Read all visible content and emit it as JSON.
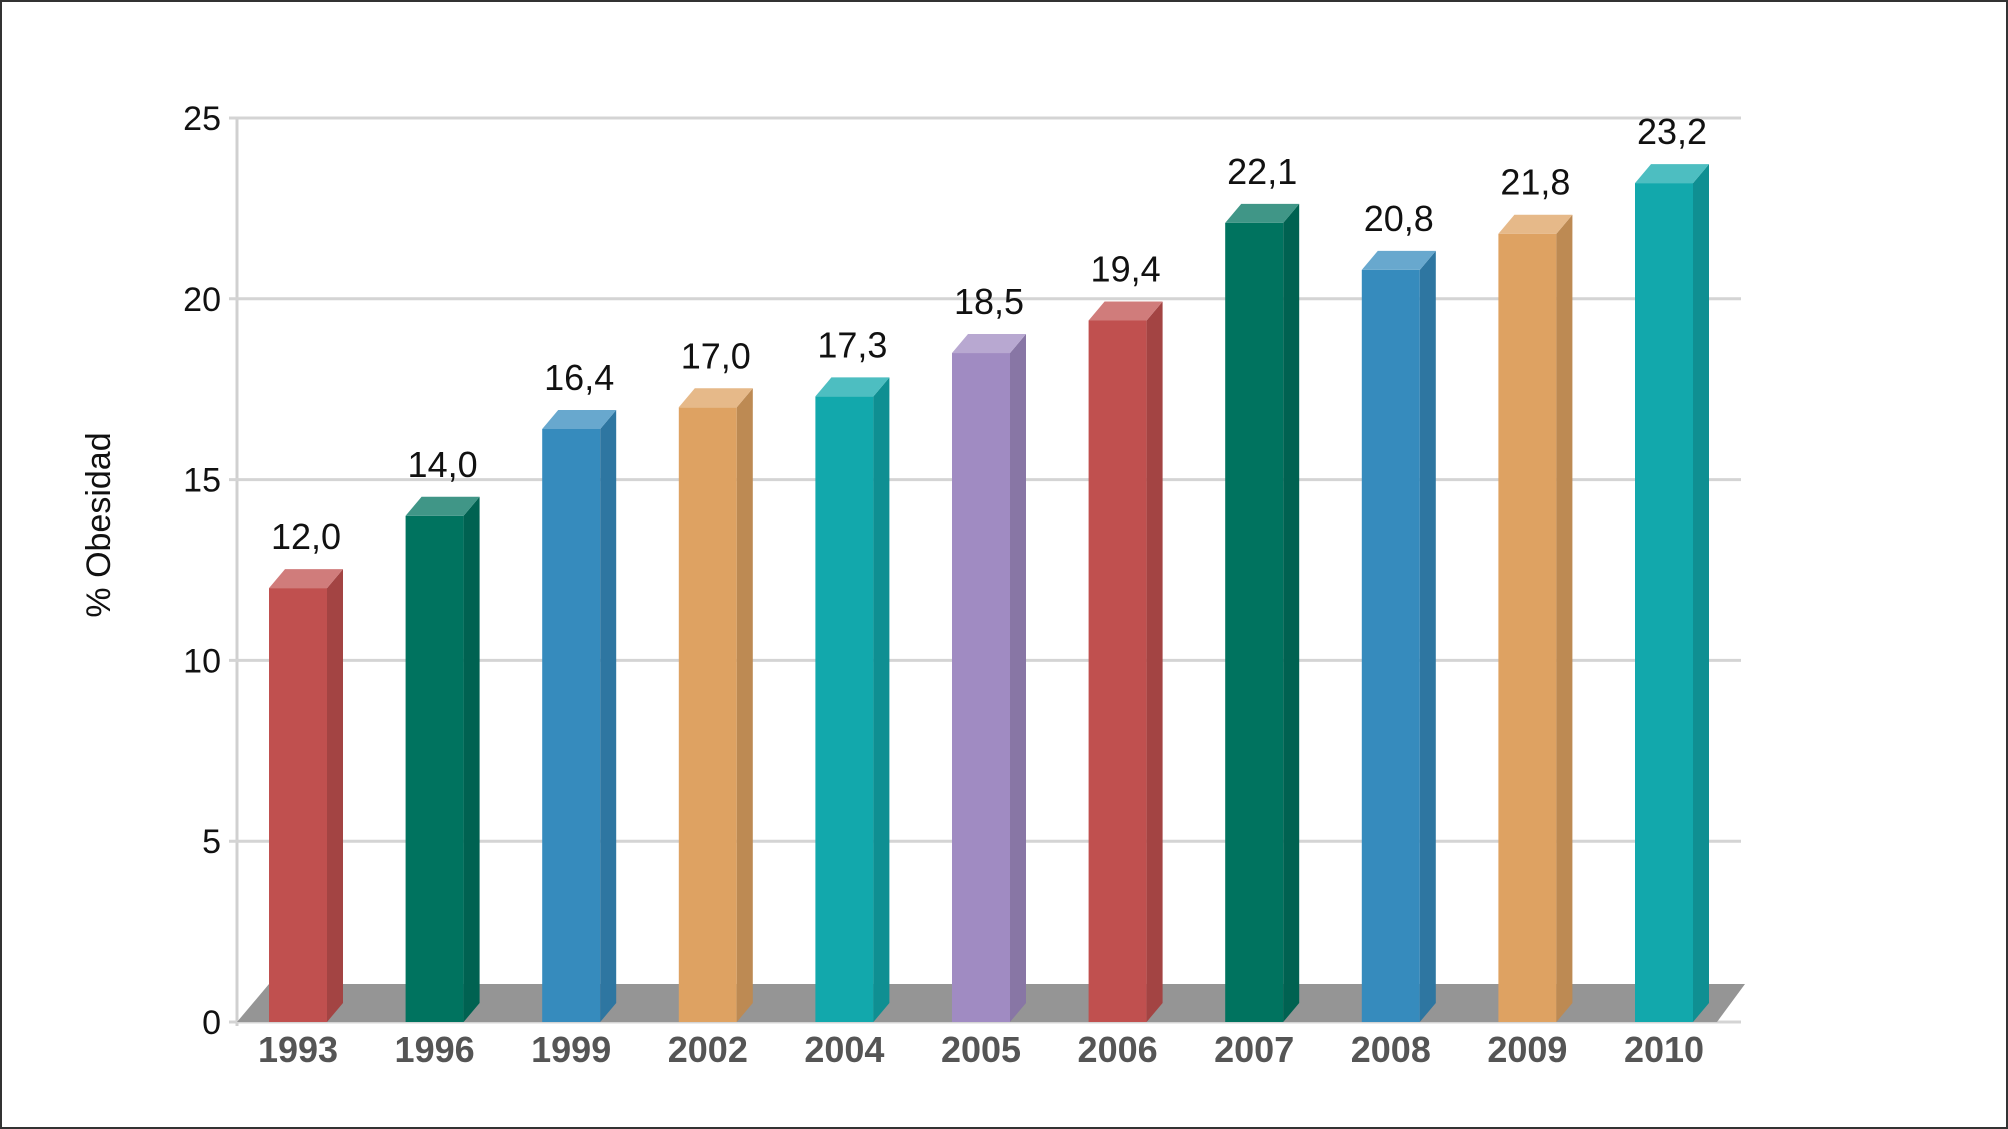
{
  "chart_data": {
    "type": "bar",
    "title": "",
    "xlabel": "",
    "ylabel": "% Obesidad",
    "ylim": [
      0,
      25
    ],
    "yticks": [
      0,
      5,
      10,
      15,
      20,
      25
    ],
    "grid": true,
    "categories": [
      "1993",
      "1996",
      "1999",
      "2002",
      "2004",
      "2005",
      "2006",
      "2007",
      "2008",
      "2009",
      "2010"
    ],
    "values": [
      12.0,
      14.0,
      16.4,
      17.0,
      17.3,
      18.5,
      19.4,
      22.1,
      20.8,
      21.8,
      23.2
    ],
    "value_labels": [
      "12,0",
      "14,0",
      "16,4",
      "17,0",
      "17,3",
      "18,5",
      "19,4",
      "22,1",
      "20,8",
      "21,8",
      "23,2"
    ],
    "colors": [
      "#c0504f",
      "#00735f",
      "#368bbd",
      "#dea262",
      "#12a8ac",
      "#a08bc2",
      "#c0504f",
      "#00735f",
      "#368bbd",
      "#dea262",
      "#12a8ac"
    ]
  }
}
